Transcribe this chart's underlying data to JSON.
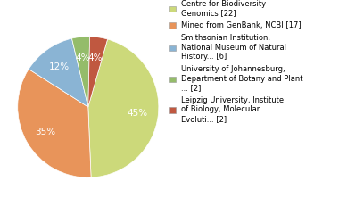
{
  "labels": [
    "Centre for Biodiversity\nGenomics [22]",
    "Mined from GenBank, NCBI [17]",
    "Smithsonian Institution,\nNational Museum of Natural\nHistory... [6]",
    "University of Johannesburg,\nDepartment of Botany and Plant\n... [2]",
    "Leipzig University, Institute\nof Biology, Molecular\nEvoluti... [2]"
  ],
  "values": [
    22,
    17,
    6,
    2,
    2
  ],
  "colors": [
    "#ccd97a",
    "#e8945a",
    "#8ab4d4",
    "#94bc6a",
    "#c05840"
  ],
  "startangle": 74,
  "figsize": [
    3.8,
    2.4
  ],
  "dpi": 100,
  "legend_fontsize": 6.0
}
